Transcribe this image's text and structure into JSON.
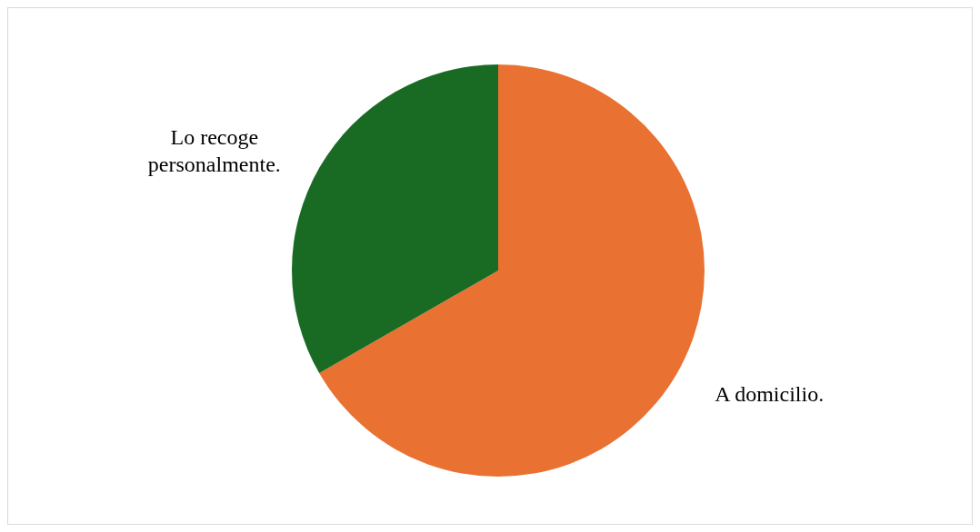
{
  "chart_data": {
    "type": "pie",
    "categories": [
      "A domicilio.",
      "Lo recoge personalmente."
    ],
    "values": [
      66.7,
      33.3
    ],
    "colors": [
      "#e97132",
      "#196b24"
    ]
  }
}
